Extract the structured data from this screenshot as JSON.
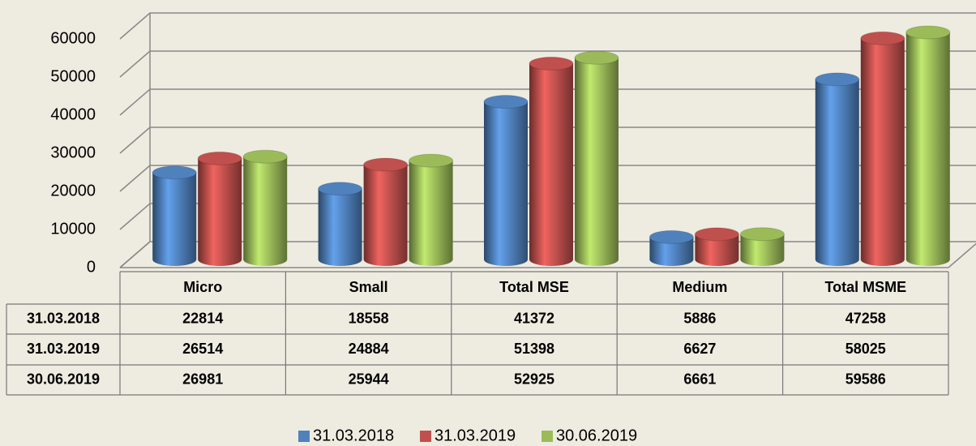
{
  "chart_data": {
    "type": "bar",
    "categories": [
      "Micro",
      "Small",
      "Total MSE",
      "Medium",
      "Total MSME"
    ],
    "series": [
      {
        "name": "31.03.2018",
        "color": "#4F81BD",
        "values": [
          22814,
          18558,
          41372,
          5886,
          47258
        ]
      },
      {
        "name": "31.03.2019",
        "color": "#C0504D",
        "values": [
          26514,
          24884,
          51398,
          6627,
          58025
        ]
      },
      {
        "name": "30.06.2019",
        "color": "#9BBB59",
        "values": [
          26981,
          25944,
          52925,
          6661,
          59586
        ]
      }
    ],
    "ylim": [
      0,
      60000
    ],
    "yticks": [
      0,
      10000,
      20000,
      30000,
      40000,
      50000,
      60000
    ],
    "grid": true,
    "legend": "bottom"
  }
}
